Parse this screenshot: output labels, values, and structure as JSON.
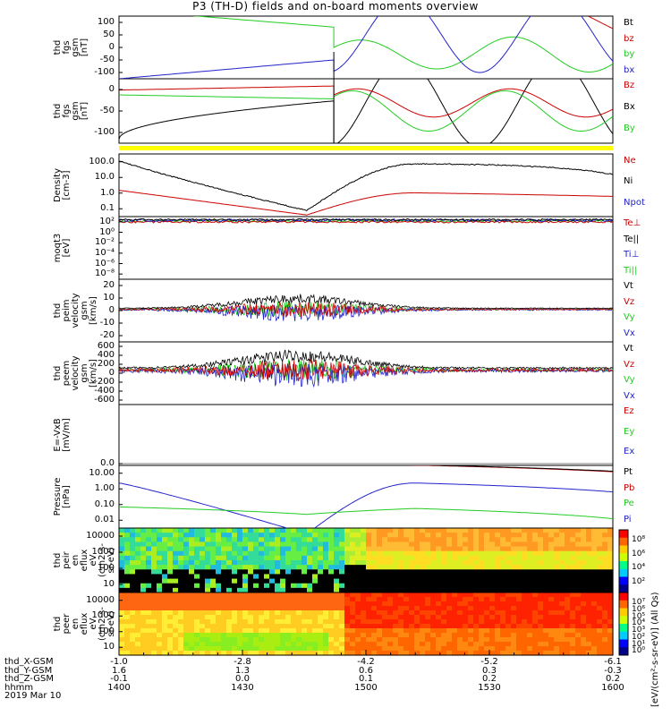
{
  "title": "P3 (TH-D) fields and on-board moments overview",
  "colors": {
    "black": "#000000",
    "red": "#cc0000",
    "green": "#22cc22",
    "blue": "#2222cc",
    "yellow": "#ffff00"
  },
  "panels": [
    {
      "id": "fgs-gsm",
      "ylabel": "thd\nfgs\ngsm\n[nT]",
      "yticks": [
        "100",
        "50",
        "0",
        "-50",
        "-100"
      ],
      "legend": [
        {
          "text": "Bt",
          "color": "black"
        },
        {
          "text": "bz",
          "color": "red"
        },
        {
          "text": "by",
          "color": "green"
        },
        {
          "text": "bx",
          "color": "blue"
        }
      ]
    },
    {
      "id": "fgs-gse",
      "ylabel": "thd\nfgs\ngsm\n[nT]",
      "yticks": [
        "0",
        "-50",
        "-100"
      ],
      "legend": [
        {
          "text": "Bz",
          "color": "red"
        },
        {
          "text": "Bx",
          "color": "black"
        },
        {
          "text": "By",
          "color": "green"
        }
      ]
    },
    {
      "id": "density",
      "ylabel": "Density\n[cm-3]",
      "yticks": [
        "100.0",
        "10.0",
        "1.0",
        "0.1"
      ],
      "legend": [
        {
          "text": "Ne",
          "color": "red"
        },
        {
          "text": "Ni",
          "color": "black"
        },
        {
          "text": "Npot",
          "color": "blue"
        }
      ]
    },
    {
      "id": "temp",
      "ylabel": "moqt3\n[eV]",
      "yticks": [
        "10²",
        "10⁰",
        "10⁻²",
        "10⁻⁴",
        "10⁻⁶",
        "10⁻⁸"
      ],
      "legend": [
        {
          "text": "Te⊥",
          "color": "red"
        },
        {
          "text": "Te||",
          "color": "black"
        },
        {
          "text": "Ti⊥",
          "color": "blue"
        },
        {
          "text": "Ti||",
          "color": "green"
        }
      ]
    },
    {
      "id": "peim",
      "ylabel": "thd\npeim\nvelocity\ngsm\n[km/s]",
      "yticks": [
        "20",
        "10",
        "0",
        "-10",
        "-20"
      ],
      "legend": [
        {
          "text": "Vt",
          "color": "black"
        },
        {
          "text": "Vz",
          "color": "red"
        },
        {
          "text": "Vy",
          "color": "green"
        },
        {
          "text": "Vx",
          "color": "blue"
        }
      ]
    },
    {
      "id": "peem",
      "ylabel": "thd\npeem\nvelocity\ngsm\n[km/s]",
      "yticks": [
        "600",
        "400",
        "200",
        "0",
        "-200",
        "-400",
        "-600"
      ],
      "legend": [
        {
          "text": "Vt",
          "color": "black"
        },
        {
          "text": "Vz",
          "color": "red"
        },
        {
          "text": "Vy",
          "color": "green"
        },
        {
          "text": "Vx",
          "color": "blue"
        }
      ]
    },
    {
      "id": "efield",
      "ylabel": "E=-VxB\n[mV/m]",
      "yticks": [
        "0.0"
      ],
      "legend": [
        {
          "text": "Ez",
          "color": "red"
        },
        {
          "text": "Ey",
          "color": "green"
        },
        {
          "text": "Ex",
          "color": "blue"
        }
      ]
    },
    {
      "id": "pressure",
      "ylabel": "Pressure\n[nPa]",
      "yticks": [
        "10.00",
        "1.00",
        "0.10",
        "0.01"
      ],
      "legend": [
        {
          "text": "Pt",
          "color": "black"
        },
        {
          "text": "Pb",
          "color": "red"
        },
        {
          "text": "Pe",
          "color": "green"
        },
        {
          "text": "Pi",
          "color": "blue"
        }
      ]
    },
    {
      "id": "peir",
      "ylabel": "thd\npeir\nen\neflux\neV\n(cm2-s-\nsr-eV)",
      "yticks": [
        "10000",
        "1000",
        "100",
        "10"
      ],
      "legend": []
    },
    {
      "id": "peer",
      "ylabel": "thd\npeer\nen\neflux\neV\n(cm2-s-\nsr-eV)",
      "yticks": [
        "10000",
        "1000",
        "100",
        "10"
      ],
      "legend": []
    }
  ],
  "colorbars": [
    {
      "ticks": [
        "10⁸",
        "10⁶",
        "10⁴",
        "10²"
      ]
    },
    {
      "ticks": [
        "10⁷",
        "10⁶",
        "10⁵",
        "10⁴",
        "10³",
        "10²",
        "10¹",
        "10⁰"
      ]
    }
  ],
  "colorbar_label": "[eV/(cm²-s-sr-eV)] (All Qs)",
  "xaxis": {
    "rows": [
      {
        "name": "thd_X-GSM",
        "values": [
          "-1.0",
          "-2.8",
          "-4.2",
          "-5.2",
          "-6.1"
        ]
      },
      {
        "name": "thd_Y-GSM",
        "values": [
          "1.6",
          "1.3",
          "0.6",
          "0.3",
          "-0.3"
        ]
      },
      {
        "name": "thd_Z-GSM",
        "values": [
          "-0.1",
          "0.0",
          "0.1",
          "0.2",
          "0.2"
        ]
      },
      {
        "name": "hhmm",
        "values": [
          "1400",
          "1430",
          "1500",
          "1530",
          "1600"
        ]
      }
    ],
    "date": "2019 Mar 10"
  },
  "chart_data": {
    "type": "line",
    "title": "P3 (TH-D) fields and on-board moments overview",
    "x": [
      "1400",
      "1430",
      "1500",
      "1530",
      "1600"
    ],
    "xlabel": "hhmm",
    "series": [
      {
        "name": "by",
        "values": [
          100,
          60,
          15,
          -100,
          -40
        ]
      },
      {
        "name": "bx",
        "values": [
          -100,
          -65,
          80,
          -50,
          50
        ]
      },
      {
        "name": "Ni",
        "values": [
          60,
          1.5,
          0.2,
          40,
          15
        ]
      },
      {
        "name": "Ne",
        "values": [
          2,
          0.3,
          0.15,
          2,
          1
        ]
      },
      {
        "name": "Pi",
        "values": [
          2,
          0.1,
          0.01,
          2,
          0.8
        ]
      },
      {
        "name": "Pe",
        "values": [
          0.12,
          0.05,
          0.05,
          0.1,
          0.03
        ]
      }
    ]
  }
}
